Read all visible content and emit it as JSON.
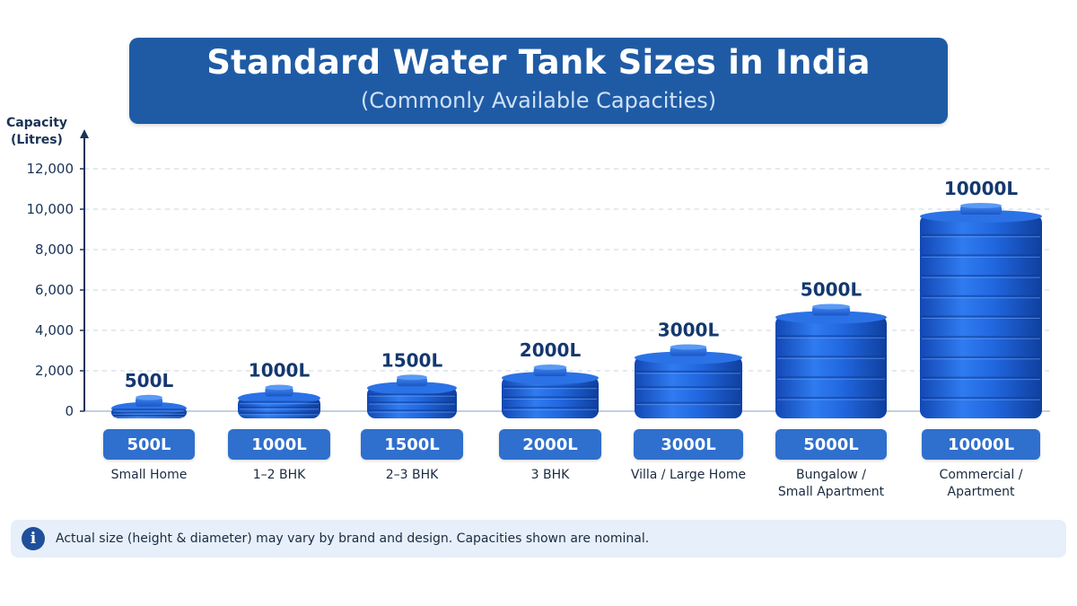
{
  "header": {
    "title": "Standard Water Tank Sizes in India",
    "subtitle": "(Commonly Available Capacities)"
  },
  "chart_data": {
    "type": "bar",
    "title": "Standard Water Tank Sizes in India",
    "subtitle": "(Commonly Available Capacities)",
    "ylabel_lines": [
      "Capacity",
      "(Litres)"
    ],
    "xlabel": "",
    "ylim": [
      0,
      12000
    ],
    "yticks": [
      0,
      2000,
      4000,
      6000,
      8000,
      10000,
      12000
    ],
    "ytick_labels": [
      "0",
      "2,000",
      "4,000",
      "6,000",
      "8,000",
      "10,000",
      "12,000"
    ],
    "grid": true,
    "categories": [
      "500L",
      "1000L",
      "1500L",
      "2000L",
      "3000L",
      "5000L",
      "10000L"
    ],
    "values": [
      500,
      1000,
      1500,
      2000,
      3000,
      5000,
      10000
    ],
    "value_labels": [
      "500L",
      "1000L",
      "1500L",
      "2000L",
      "3000L",
      "5000L",
      "10000L"
    ],
    "descriptions": [
      [
        "Small Home"
      ],
      [
        "1–2 BHK"
      ],
      [
        "2–3 BHK"
      ],
      [
        "3 BHK"
      ],
      [
        "Villa / Large Home"
      ],
      [
        "Bungalow /",
        "Small Apartment"
      ],
      [
        "Commercial /",
        "Apartment"
      ]
    ],
    "bar_style": "water-tank"
  },
  "footer": {
    "note": "Actual size (height & diameter) may vary by brand and design. Capacities shown are nominal.",
    "icon": "info-icon"
  },
  "colors": {
    "banner": "#1f5ba5",
    "tank": "#1e63d8",
    "pill": "#2f6fcd",
    "axis_text": "#1a3357",
    "note_bg": "#e6effa"
  }
}
